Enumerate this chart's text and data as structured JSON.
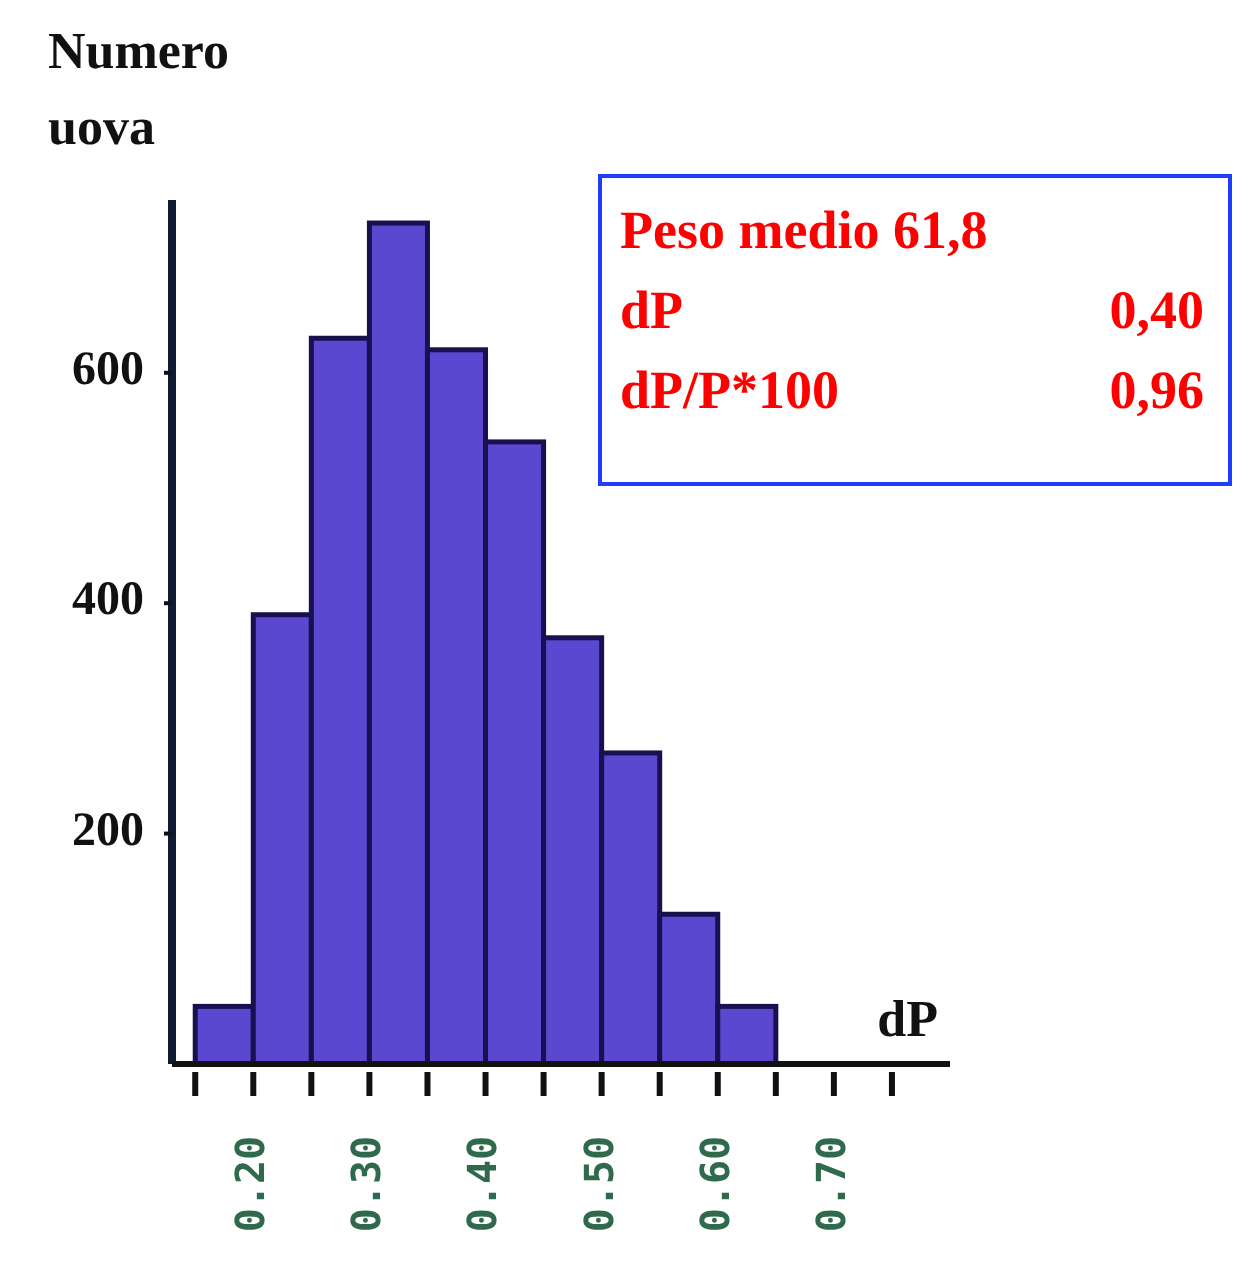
{
  "chart_data": {
    "type": "histogram",
    "ylabel": "Numero uova",
    "xlabel": "dP",
    "bins": [
      0.15,
      0.2,
      0.25,
      0.3,
      0.35,
      0.4,
      0.45,
      0.5,
      0.55,
      0.6,
      0.65
    ],
    "values": [
      50,
      390,
      630,
      730,
      620,
      540,
      370,
      270,
      130,
      50
    ],
    "color": "#5a48d0",
    "xlim": [
      0.13,
      0.8
    ],
    "xticks": [
      {
        "value": 0.15,
        "label": null
      },
      {
        "value": 0.2,
        "label": "0.20"
      },
      {
        "value": 0.25,
        "label": null
      },
      {
        "value": 0.3,
        "label": "0.30"
      },
      {
        "value": 0.35,
        "label": null
      },
      {
        "value": 0.4,
        "label": "0.40"
      },
      {
        "value": 0.45,
        "label": null
      },
      {
        "value": 0.5,
        "label": "0.50"
      },
      {
        "value": 0.55,
        "label": null
      },
      {
        "value": 0.6,
        "label": "0.60"
      },
      {
        "value": 0.65,
        "label": null
      },
      {
        "value": 0.7,
        "label": "0.70"
      },
      {
        "value": 0.75,
        "label": null
      }
    ],
    "ylim": [
      0,
      750
    ],
    "yticks": [
      200,
      400,
      600
    ],
    "grid": false,
    "legend": false,
    "annotations": [
      "Peso medio 61,8",
      "dP",
      "0,40",
      "dP/P*100",
      "0,96"
    ]
  }
}
